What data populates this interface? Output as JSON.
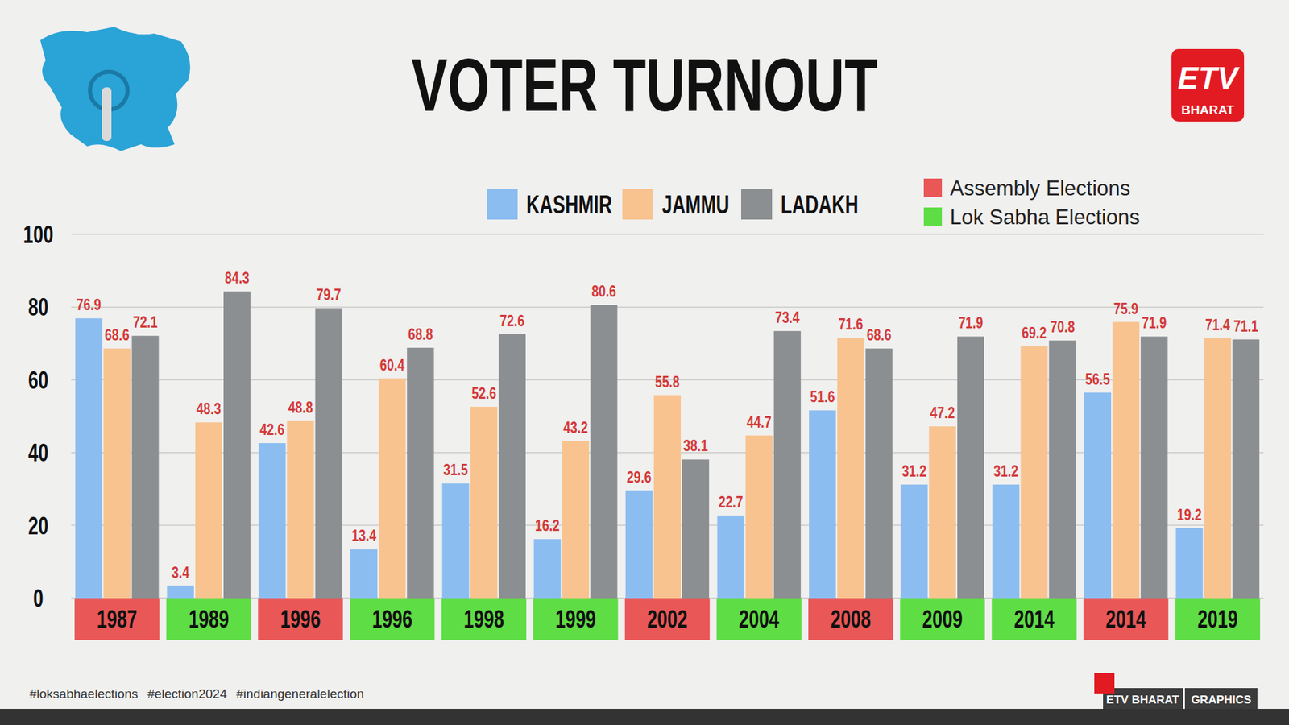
{
  "chart_data": {
    "type": "bar",
    "title": "VOTER TURNOUT",
    "categories": [
      "1987",
      "1989",
      "1996",
      "1996",
      "1998",
      "1999",
      "2002",
      "2004",
      "2008",
      "2009",
      "2014",
      "2014",
      "2019"
    ],
    "category_group": [
      "Assembly Elections",
      "Lok Sabha Elections",
      "Assembly Elections",
      "Lok Sabha Elections",
      "Lok Sabha Elections",
      "Lok Sabha Elections",
      "Assembly Elections",
      "Lok Sabha Elections",
      "Assembly Elections",
      "Lok Sabha Elections",
      "Lok Sabha Elections",
      "Assembly Elections",
      "Lok Sabha Elections"
    ],
    "category_groups": [
      {
        "name": "Assembly Elections",
        "color": "#e95757"
      },
      {
        "name": "Lok Sabha Elections",
        "color": "#5fdd45"
      }
    ],
    "series": [
      {
        "name": "KASHMIR",
        "color": "#8cbdf0",
        "values": [
          76.9,
          3.4,
          42.6,
          13.4,
          31.5,
          16.2,
          29.6,
          22.7,
          51.6,
          31.2,
          31.2,
          56.5,
          19.2
        ]
      },
      {
        "name": "JAMMU",
        "color": "#f8c38f",
        "values": [
          68.6,
          48.3,
          48.8,
          60.4,
          52.6,
          43.2,
          55.8,
          44.7,
          71.6,
          47.2,
          69.2,
          75.9,
          71.4
        ]
      },
      {
        "name": "LADAKH",
        "color": "#8b8f91",
        "values": [
          72.1,
          84.3,
          79.7,
          68.8,
          72.6,
          80.6,
          38.1,
          73.4,
          68.6,
          71.9,
          70.8,
          71.9,
          71.1
        ]
      }
    ],
    "ylim": [
      0,
      100
    ],
    "yticks": [
      0,
      20,
      40,
      60,
      80,
      100
    ],
    "grid": true,
    "data_labels": true
  },
  "branding": {
    "logo_mark": "ETV",
    "logo_text": "BHARAT",
    "hashtags": [
      "#loksabhaelections",
      "#election2024",
      "#indiangeneralelection"
    ],
    "credit": [
      "ETV BHARAT",
      "GRAPHICS"
    ]
  }
}
